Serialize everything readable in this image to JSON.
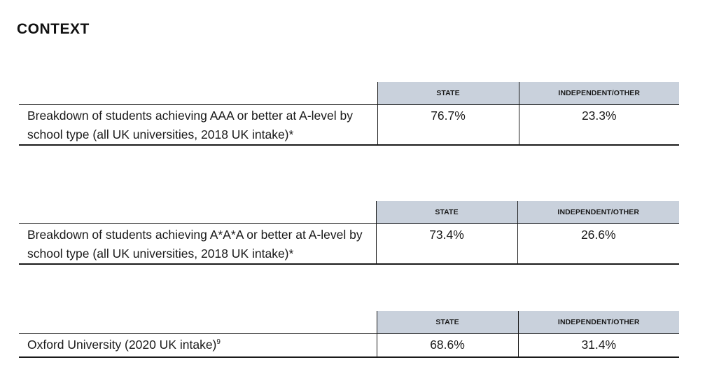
{
  "page": {
    "title": "CONTEXT"
  },
  "tables": [
    {
      "headers": [
        "STATE",
        "INDEPENDENT/OTHER"
      ],
      "label": "Breakdown of students achieving AAA or better at A-level by school type (all UK universities, 2018 UK intake)",
      "label_mark": "*",
      "values": [
        "76.7%",
        "23.3%"
      ]
    },
    {
      "headers": [
        "STATE",
        "INDEPENDENT/OTHER"
      ],
      "label": "Breakdown of students achieving A*A*A or better at A-level by school type (all UK universities, 2018 UK intake)",
      "label_mark": "*",
      "values": [
        "73.4%",
        "26.6%"
      ]
    },
    {
      "headers": [
        "STATE",
        "INDEPENDENT/OTHER"
      ],
      "label": "Oxford University (2020 UK intake)",
      "label_mark": "9",
      "values": [
        "68.6%",
        "31.4%"
      ]
    }
  ]
}
